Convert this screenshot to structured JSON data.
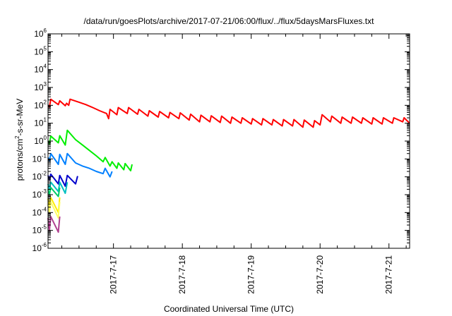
{
  "chart_data": {
    "type": "line",
    "title": "/data/run/goesPlots/archive/2017-07-21/06:00/flux/../flux/5daysMarsFluxes.txt",
    "xlabel": "Coordinated Universal Time (UTC)",
    "ylabel": {
      "base": "protons/cm",
      "sup": "2",
      "rest": "-s-sr-MeV"
    },
    "yscale": "log",
    "ylim": [
      1e-06,
      1000000.0
    ],
    "y_ticks": [
      {
        "value": 1e-06,
        "base": "10",
        "exp": "-6"
      },
      {
        "value": 1e-05,
        "base": "10",
        "exp": "-5"
      },
      {
        "value": 0.0001,
        "base": "10",
        "exp": "-4"
      },
      {
        "value": 0.001,
        "base": "10",
        "exp": "-3"
      },
      {
        "value": 0.01,
        "base": "10",
        "exp": "-2"
      },
      {
        "value": 0.1,
        "base": "10",
        "exp": "-1"
      },
      {
        "value": 1,
        "base": "10",
        "exp": "0"
      },
      {
        "value": 10,
        "base": "10",
        "exp": "1"
      },
      {
        "value": 100,
        "base": "10",
        "exp": "2"
      },
      {
        "value": 1000,
        "base": "10",
        "exp": "3"
      },
      {
        "value": 10000,
        "base": "10",
        "exp": "4"
      },
      {
        "value": 100000,
        "base": "10",
        "exp": "5"
      },
      {
        "value": 1000000,
        "base": "10",
        "exp": "6"
      }
    ],
    "xlim": [
      16.05,
      21.3
    ],
    "x_ticks": [
      {
        "value": 17,
        "label": "2017-7-17"
      },
      {
        "value": 18,
        "label": "2017-7-18"
      },
      {
        "value": 19,
        "label": "2017-7-19"
      },
      {
        "value": 20,
        "label": "2017-7-20"
      },
      {
        "value": 21,
        "label": "2017-7-21"
      }
    ],
    "grid": false,
    "legend": "none",
    "series": [
      {
        "color": "#ff0000",
        "values": [
          [
            16.05,
            100
          ],
          [
            16.07,
            80
          ],
          [
            16.09,
            220
          ],
          [
            16.2,
            110
          ],
          [
            16.22,
            180
          ],
          [
            16.3,
            95
          ],
          [
            16.32,
            130
          ],
          [
            16.35,
            100
          ],
          [
            16.37,
            220
          ],
          [
            16.5,
            150
          ],
          [
            16.6,
            110
          ],
          [
            16.7,
            75
          ],
          [
            16.8,
            50
          ],
          [
            16.9,
            35
          ],
          [
            16.93,
            18
          ],
          [
            16.95,
            60
          ],
          [
            17.05,
            30
          ],
          [
            17.07,
            75
          ],
          [
            17.2,
            35
          ],
          [
            17.22,
            75
          ],
          [
            17.35,
            32
          ],
          [
            17.37,
            60
          ],
          [
            17.5,
            25
          ],
          [
            17.52,
            50
          ],
          [
            17.65,
            22
          ],
          [
            17.67,
            45
          ],
          [
            17.8,
            20
          ],
          [
            17.82,
            40
          ],
          [
            17.95,
            18
          ],
          [
            17.97,
            38
          ],
          [
            18.1,
            15
          ],
          [
            18.12,
            32
          ],
          [
            18.25,
            12
          ],
          [
            18.27,
            28
          ],
          [
            18.4,
            12
          ],
          [
            18.42,
            26
          ],
          [
            18.55,
            11
          ],
          [
            18.57,
            25
          ],
          [
            18.7,
            10
          ],
          [
            18.72,
            22
          ],
          [
            18.85,
            10
          ],
          [
            18.87,
            20
          ],
          [
            19.0,
            9
          ],
          [
            19.02,
            18
          ],
          [
            19.15,
            8
          ],
          [
            19.17,
            18
          ],
          [
            19.3,
            8
          ],
          [
            19.32,
            16
          ],
          [
            19.45,
            7
          ],
          [
            19.47,
            16
          ],
          [
            19.6,
            7
          ],
          [
            19.62,
            16
          ],
          [
            19.75,
            6
          ],
          [
            19.77,
            15
          ],
          [
            19.9,
            6
          ],
          [
            19.92,
            14
          ],
          [
            20.0,
            8
          ],
          [
            20.03,
            30
          ],
          [
            20.15,
            12
          ],
          [
            20.17,
            25
          ],
          [
            20.3,
            10
          ],
          [
            20.32,
            22
          ],
          [
            20.45,
            10
          ],
          [
            20.47,
            22
          ],
          [
            20.6,
            10
          ],
          [
            20.62,
            20
          ],
          [
            20.75,
            9
          ],
          [
            20.77,
            20
          ],
          [
            20.9,
            9
          ],
          [
            20.92,
            20
          ],
          [
            21.05,
            10
          ],
          [
            21.07,
            20
          ],
          [
            21.2,
            12
          ],
          [
            21.22,
            20
          ],
          [
            21.3,
            10
          ]
        ]
      },
      {
        "color": "#00ee00",
        "values": [
          [
            16.05,
            1.0
          ],
          [
            16.07,
            0.7
          ],
          [
            16.09,
            1.9
          ],
          [
            16.2,
            0.8
          ],
          [
            16.22,
            2.0
          ],
          [
            16.3,
            0.6
          ],
          [
            16.33,
            4.0
          ],
          [
            16.45,
            1.2
          ],
          [
            16.55,
            0.6
          ],
          [
            16.65,
            0.3
          ],
          [
            16.75,
            0.15
          ],
          [
            16.85,
            0.07
          ],
          [
            16.88,
            0.12
          ],
          [
            16.95,
            0.04
          ],
          [
            16.98,
            0.07
          ],
          [
            17.05,
            0.03
          ],
          [
            17.07,
            0.06
          ],
          [
            17.15,
            0.025
          ],
          [
            17.17,
            0.055
          ],
          [
            17.25,
            0.022
          ],
          [
            17.27,
            0.05
          ]
        ]
      },
      {
        "color": "#0080ff",
        "values": [
          [
            16.05,
            0.12
          ],
          [
            16.07,
            0.08
          ],
          [
            16.09,
            0.2
          ],
          [
            16.2,
            0.05
          ],
          [
            16.22,
            0.18
          ],
          [
            16.3,
            0.05
          ],
          [
            16.33,
            0.2
          ],
          [
            16.45,
            0.06
          ],
          [
            16.55,
            0.04
          ],
          [
            16.65,
            0.03
          ],
          [
            16.75,
            0.02
          ],
          [
            16.85,
            0.015
          ],
          [
            16.88,
            0.03
          ],
          [
            16.95,
            0.01
          ],
          [
            16.98,
            0.02
          ]
        ]
      },
      {
        "color": "#0000cc",
        "values": [
          [
            16.05,
            0.012
          ],
          [
            16.07,
            0.007
          ],
          [
            16.09,
            0.014
          ],
          [
            16.2,
            0.004
          ],
          [
            16.22,
            0.012
          ],
          [
            16.3,
            0.003
          ],
          [
            16.33,
            0.012
          ],
          [
            16.45,
            0.004
          ],
          [
            16.48,
            0.011
          ]
        ]
      },
      {
        "color": "#00c0c0",
        "values": [
          [
            16.05,
            0.004
          ],
          [
            16.07,
            0.002
          ],
          [
            16.09,
            0.005
          ],
          [
            16.2,
            0.0015
          ],
          [
            16.22,
            0.005
          ],
          [
            16.3,
            0.0012
          ],
          [
            16.33,
            0.005
          ]
        ]
      },
      {
        "color": "#00cc66",
        "values": [
          [
            16.05,
            0.002
          ],
          [
            16.07,
            0.001
          ],
          [
            16.09,
            0.0025
          ],
          [
            16.2,
            0.0008
          ],
          [
            16.22,
            0.0025
          ]
        ]
      },
      {
        "color": "#ffee00",
        "values": [
          [
            16.05,
            0.0006
          ],
          [
            16.07,
            0.0002
          ],
          [
            16.09,
            0.0007
          ],
          [
            16.2,
            0.0001
          ],
          [
            16.22,
            0.0007
          ]
        ]
      },
      {
        "color": "#ffff66",
        "values": [
          [
            16.05,
            0.0003
          ],
          [
            16.07,
            0.0001
          ],
          [
            16.09,
            0.0004
          ],
          [
            16.2,
            5e-05
          ],
          [
            16.22,
            0.0004
          ]
        ]
      },
      {
        "color": "#b04090",
        "values": [
          [
            16.05,
            5e-05
          ],
          [
            16.07,
            1e-05
          ],
          [
            16.09,
            6e-05
          ],
          [
            16.2,
            8e-06
          ],
          [
            16.22,
            6e-05
          ]
        ]
      }
    ]
  }
}
